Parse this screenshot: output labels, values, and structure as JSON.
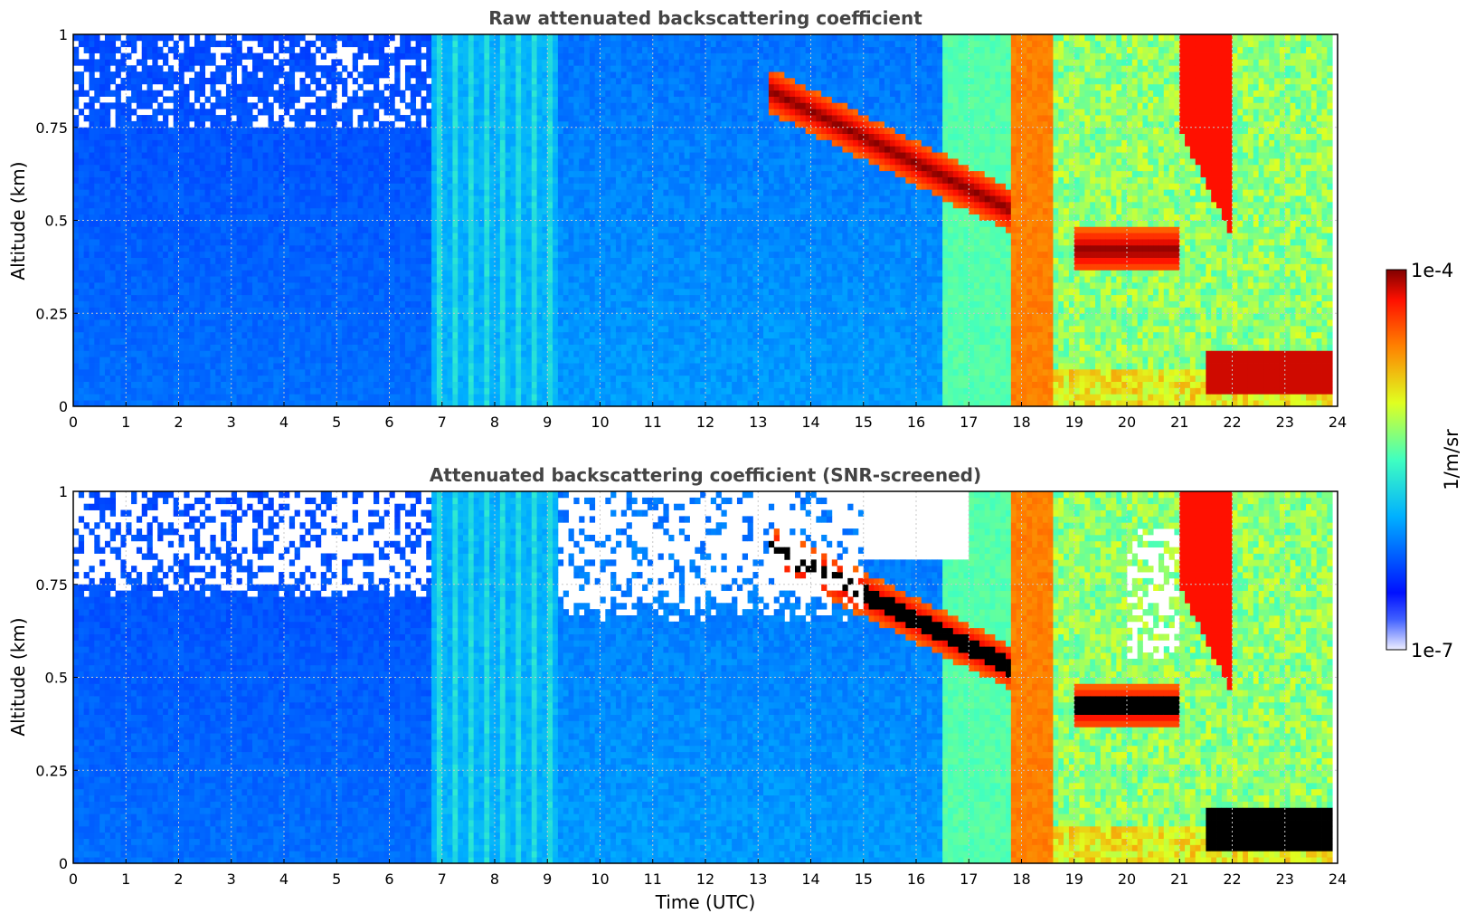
{
  "chart_data": [
    {
      "type": "heatmap",
      "title": "Raw attenuated backscattering coefficient",
      "xlabel": "",
      "ylabel": "Altitude (km)",
      "xlim": [
        0,
        24
      ],
      "ylim": [
        0,
        1
      ],
      "xticks": [
        "0",
        "1",
        "2",
        "3",
        "4",
        "5",
        "6",
        "7",
        "8",
        "9",
        "10",
        "11",
        "12",
        "13",
        "14",
        "15",
        "16",
        "17",
        "18",
        "19",
        "20",
        "21",
        "22",
        "23",
        "24"
      ],
      "yticks": [
        "0",
        "0.25",
        "0.5",
        "0.75",
        "1"
      ],
      "grid": true,
      "screened": false
    },
    {
      "type": "heatmap",
      "title": "Attenuated backscattering coefficient (SNR-screened)",
      "xlabel": "Time (UTC)",
      "ylabel": "Altitude (km)",
      "xlim": [
        0,
        24
      ],
      "ylim": [
        0,
        1
      ],
      "xticks": [
        "0",
        "1",
        "2",
        "3",
        "4",
        "5",
        "6",
        "7",
        "8",
        "9",
        "10",
        "11",
        "12",
        "13",
        "14",
        "15",
        "16",
        "17",
        "18",
        "19",
        "20",
        "21",
        "22",
        "23",
        "24"
      ],
      "yticks": [
        "0",
        "0.25",
        "0.5",
        "0.75",
        "1"
      ],
      "grid": true,
      "screened": true
    }
  ],
  "colorbar": {
    "max_label": "1e-4",
    "min_label": "1e-7",
    "unit_label": "1/m/sr",
    "range": [
      1e-07,
      0.0001
    ],
    "scale": "log",
    "colormap": "jet"
  }
}
